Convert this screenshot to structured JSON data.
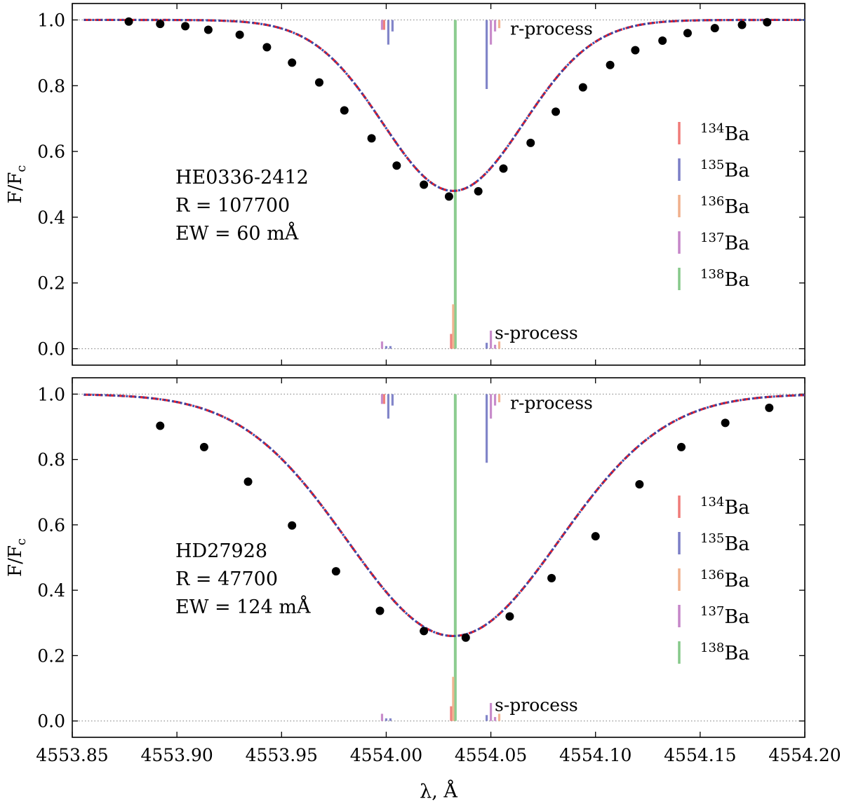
{
  "figure": {
    "xlabel": "λ, Å",
    "ylabel_main": "F/F",
    "ylabel_sub": "c",
    "xticks": [
      4553.85,
      4553.9,
      4553.95,
      4554.0,
      4554.05,
      4554.1,
      4554.15,
      4554.2
    ],
    "xtick_labels": [
      "4553.85",
      "4553.90",
      "4553.95",
      "4554.00",
      "4554.05",
      "4554.10",
      "4554.15",
      "4554.20"
    ],
    "yticks": [
      0.0,
      0.2,
      0.4,
      0.6,
      0.8,
      1.0
    ],
    "ytick_labels": [
      "0.0",
      "0.2",
      "0.4",
      "0.6",
      "0.8",
      "1.0"
    ],
    "xlim": [
      4553.85,
      4554.2
    ],
    "ylim": [
      -0.05,
      1.05
    ],
    "r_process_label": "r-process",
    "s_process_label": "s-process",
    "colors": {
      "model_red": "#e8202a",
      "model_blue": "#2b43a8",
      "observed": "#000000",
      "ref_line": "#888888",
      "Ba134": "#ef7b78",
      "Ba135": "#7b7ec6",
      "Ba136": "#f0b08c",
      "Ba137": "#c586c8",
      "Ba138": "#86c98a"
    },
    "legend": [
      {
        "mass": "134",
        "element": "Ba",
        "color": "#ef7b78"
      },
      {
        "mass": "135",
        "element": "Ba",
        "color": "#7b7ec6"
      },
      {
        "mass": "136",
        "element": "Ba",
        "color": "#f0b08c"
      },
      {
        "mass": "137",
        "element": "Ba",
        "color": "#c586c8"
      },
      {
        "mass": "138",
        "element": "Ba",
        "color": "#86c98a"
      }
    ],
    "legend_position": "right"
  },
  "chart_data": [
    {
      "type": "line",
      "star": "HE0336-2412",
      "resolution_text": "R = 107700",
      "ew_text": "EW = 60 mÅ",
      "profile": {
        "center": 4554.032,
        "depth": 0.52,
        "sigma": 0.0335
      },
      "observed": {
        "x": [
          4553.877,
          4553.892,
          4553.904,
          4553.915,
          4553.93,
          4553.943,
          4553.955,
          4553.968,
          4553.98,
          4553.993,
          4554.005,
          4554.018,
          4554.03,
          4554.044,
          4554.056,
          4554.069,
          4554.081,
          4554.094,
          4554.107,
          4554.119,
          4554.132,
          4554.144,
          4554.157,
          4554.17,
          4554.182
        ],
        "y": [
          0.995,
          0.988,
          0.981,
          0.97,
          0.955,
          0.917,
          0.87,
          0.81,
          0.725,
          0.64,
          0.557,
          0.499,
          0.463,
          0.479,
          0.548,
          0.626,
          0.721,
          0.795,
          0.863,
          0.908,
          0.937,
          0.96,
          0.975,
          0.985,
          0.993
        ]
      },
      "isotope_lines": [
        {
          "isotope": "138",
          "x": 4554.033,
          "y0": 0.0,
          "y1": 1.0,
          "process": "both"
        },
        {
          "isotope": "137",
          "x": 4553.998,
          "y0": 1.0,
          "y1": 0.97,
          "process": "r"
        },
        {
          "isotope": "134",
          "x": 4553.999,
          "y0": 1.0,
          "y1": 0.97,
          "process": "r"
        },
        {
          "isotope": "135",
          "x": 4554.001,
          "y0": 1.0,
          "y1": 0.925,
          "process": "r"
        },
        {
          "isotope": "135",
          "x": 4554.003,
          "y0": 1.0,
          "y1": 0.965,
          "process": "r"
        },
        {
          "isotope": "135",
          "x": 4554.048,
          "y0": 1.0,
          "y1": 0.79,
          "process": "r"
        },
        {
          "isotope": "137",
          "x": 4554.05,
          "y0": 1.0,
          "y1": 0.925,
          "process": "r"
        },
        {
          "isotope": "137",
          "x": 4554.052,
          "y0": 1.0,
          "y1": 0.965,
          "process": "r"
        },
        {
          "isotope": "136",
          "x": 4554.054,
          "y0": 1.0,
          "y1": 0.975,
          "process": "r"
        },
        {
          "isotope": "137",
          "x": 4553.998,
          "y0": 0.0,
          "y1": 0.022,
          "process": "s"
        },
        {
          "isotope": "135",
          "x": 4554.0,
          "y0": 0.0,
          "y1": 0.008,
          "process": "s"
        },
        {
          "isotope": "135",
          "x": 4554.002,
          "y0": 0.0,
          "y1": 0.008,
          "process": "s"
        },
        {
          "isotope": "134",
          "x": 4554.031,
          "y0": 0.0,
          "y1": 0.045,
          "process": "s"
        },
        {
          "isotope": "136",
          "x": 4554.032,
          "y0": 0.0,
          "y1": 0.135,
          "process": "s"
        },
        {
          "isotope": "135",
          "x": 4554.048,
          "y0": 0.0,
          "y1": 0.018,
          "process": "s"
        },
        {
          "isotope": "137",
          "x": 4554.05,
          "y0": 0.0,
          "y1": 0.055,
          "process": "s"
        },
        {
          "isotope": "137",
          "x": 4554.052,
          "y0": 0.0,
          "y1": 0.012,
          "process": "s"
        },
        {
          "isotope": "136",
          "x": 4554.054,
          "y0": 0.0,
          "y1": 0.022,
          "process": "s"
        }
      ]
    },
    {
      "type": "line",
      "star": "HD27928",
      "resolution_text": "R = 47700",
      "ew_text": "EW = 124 mÅ",
      "profile": {
        "center": 4554.032,
        "depth": 0.74,
        "sigma": 0.0505
      },
      "observed": {
        "x": [
          4553.892,
          4553.913,
          4553.934,
          4553.955,
          4553.976,
          4553.997,
          4554.018,
          4554.038,
          4554.059,
          4554.079,
          4554.1,
          4554.121,
          4554.141,
          4554.162,
          4554.183
        ],
        "y": [
          0.903,
          0.838,
          0.732,
          0.598,
          0.458,
          0.337,
          0.275,
          0.255,
          0.32,
          0.437,
          0.565,
          0.724,
          0.838,
          0.912,
          0.958
        ]
      },
      "isotope_lines": [
        {
          "isotope": "138",
          "x": 4554.033,
          "y0": 0.0,
          "y1": 1.0,
          "process": "both"
        },
        {
          "isotope": "137",
          "x": 4553.998,
          "y0": 1.0,
          "y1": 0.97,
          "process": "r"
        },
        {
          "isotope": "134",
          "x": 4553.999,
          "y0": 1.0,
          "y1": 0.97,
          "process": "r"
        },
        {
          "isotope": "135",
          "x": 4554.001,
          "y0": 1.0,
          "y1": 0.925,
          "process": "r"
        },
        {
          "isotope": "135",
          "x": 4554.003,
          "y0": 1.0,
          "y1": 0.965,
          "process": "r"
        },
        {
          "isotope": "135",
          "x": 4554.048,
          "y0": 1.0,
          "y1": 0.79,
          "process": "r"
        },
        {
          "isotope": "137",
          "x": 4554.05,
          "y0": 1.0,
          "y1": 0.925,
          "process": "r"
        },
        {
          "isotope": "137",
          "x": 4554.052,
          "y0": 1.0,
          "y1": 0.965,
          "process": "r"
        },
        {
          "isotope": "136",
          "x": 4554.054,
          "y0": 1.0,
          "y1": 0.975,
          "process": "r"
        },
        {
          "isotope": "137",
          "x": 4553.998,
          "y0": 0.0,
          "y1": 0.022,
          "process": "s"
        },
        {
          "isotope": "135",
          "x": 4554.0,
          "y0": 0.0,
          "y1": 0.008,
          "process": "s"
        },
        {
          "isotope": "135",
          "x": 4554.002,
          "y0": 0.0,
          "y1": 0.008,
          "process": "s"
        },
        {
          "isotope": "134",
          "x": 4554.031,
          "y0": 0.0,
          "y1": 0.045,
          "process": "s"
        },
        {
          "isotope": "136",
          "x": 4554.032,
          "y0": 0.0,
          "y1": 0.135,
          "process": "s"
        },
        {
          "isotope": "135",
          "x": 4554.048,
          "y0": 0.0,
          "y1": 0.018,
          "process": "s"
        },
        {
          "isotope": "137",
          "x": 4554.05,
          "y0": 0.0,
          "y1": 0.055,
          "process": "s"
        },
        {
          "isotope": "137",
          "x": 4554.052,
          "y0": 0.0,
          "y1": 0.012,
          "process": "s"
        },
        {
          "isotope": "136",
          "x": 4554.054,
          "y0": 0.0,
          "y1": 0.022,
          "process": "s"
        }
      ]
    }
  ]
}
